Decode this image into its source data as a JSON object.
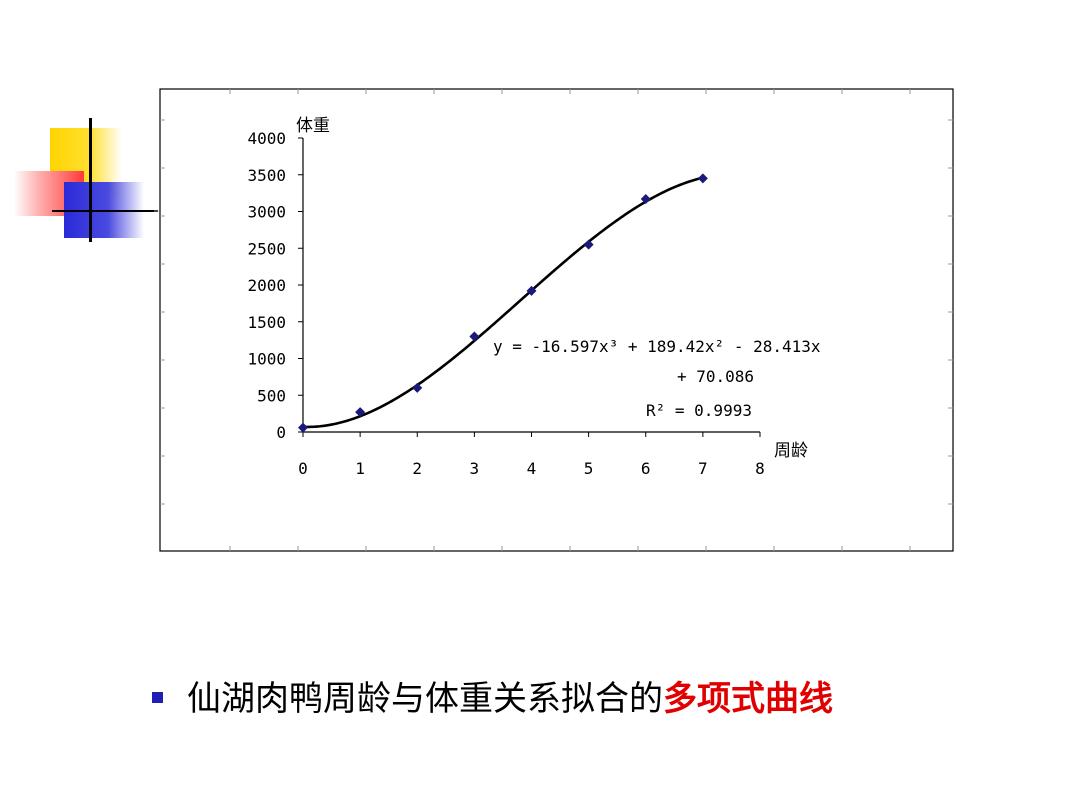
{
  "chart_data": {
    "type": "scatter",
    "ylabel": "体重",
    "xlabel": "周龄",
    "xlim": [
      0,
      8
    ],
    "ylim": [
      0,
      4000
    ],
    "x_ticks": [
      "0",
      "1",
      "2",
      "3",
      "4",
      "5",
      "6",
      "7",
      "8"
    ],
    "y_ticks": [
      "4000",
      "3500",
      "3000",
      "2500",
      "2000",
      "1500",
      "1000",
      "500",
      "0"
    ],
    "points": [
      {
        "x": 0,
        "y": 60
      },
      {
        "x": 1,
        "y": 270
      },
      {
        "x": 2,
        "y": 600
      },
      {
        "x": 3,
        "y": 1300
      },
      {
        "x": 4,
        "y": 1920
      },
      {
        "x": 5,
        "y": 2550
      },
      {
        "x": 6,
        "y": 3170
      },
      {
        "x": 7,
        "y": 3450
      }
    ],
    "trendline": {
      "type": "polynomial",
      "order": 3,
      "coefficients": [
        -16.597,
        189.42,
        -28.413,
        70.086
      ],
      "equation_line1": "y = -16.597x³ + 189.42x² - 28.413x",
      "equation_line2": "+ 70.086",
      "r_squared": "R² = 0.9993"
    },
    "grid": false,
    "colors": {
      "marker": "#1a1a7a",
      "trendline": "#000000"
    }
  },
  "caption": {
    "prefix": "仙湖肉鸭周龄与体重关系拟合的",
    "highlight": "多项式曲线",
    "highlight_color": "#e10000",
    "bullet_color": "#1f1fb4"
  }
}
